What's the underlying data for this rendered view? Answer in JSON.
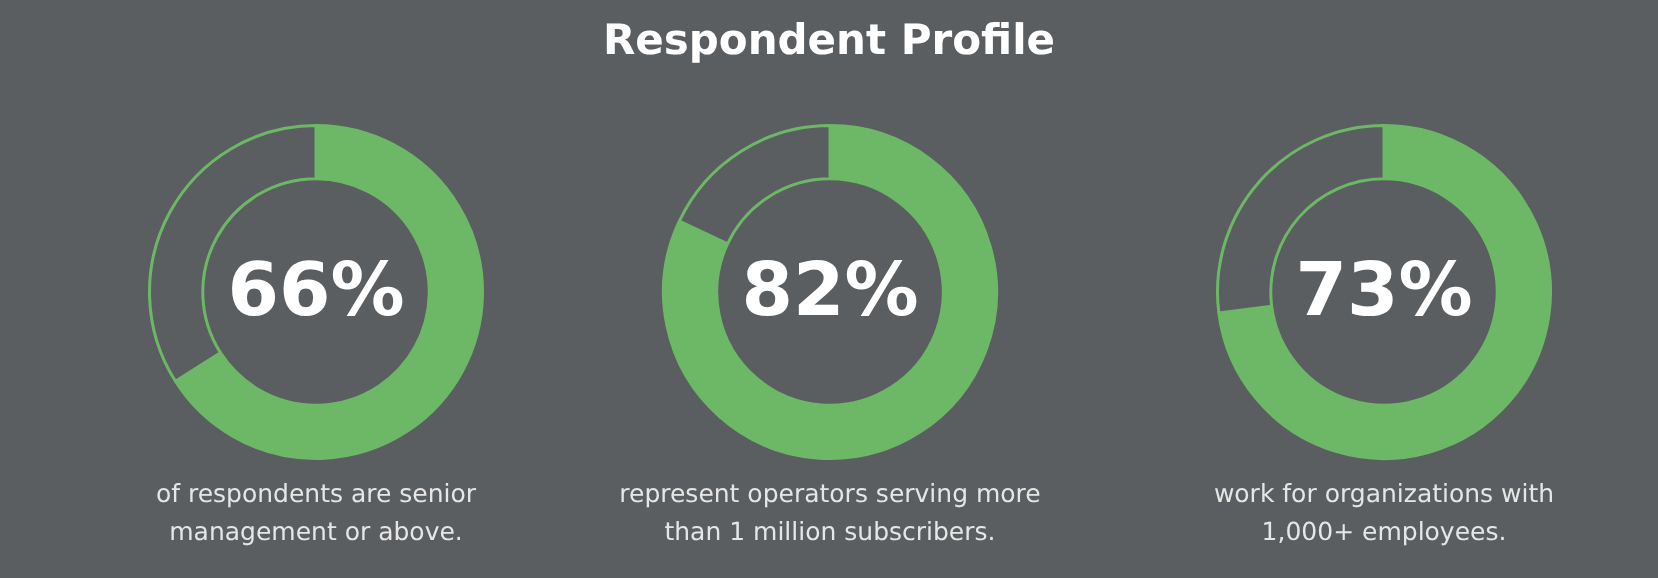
{
  "chart_data": [
    {
      "type": "other",
      "title": "Respondent Profile"
    },
    {
      "type": "donut",
      "categories": [
        null,
        null
      ],
      "values": [
        66,
        34
      ],
      "colors": [
        "#6cb866",
        "#5b5e60"
      ],
      "value_labels": [
        "66%",
        null
      ],
      "annotations": [
        "of respondents are senior management or above."
      ]
    },
    {
      "type": "donut",
      "categories": [
        null,
        null
      ],
      "values": [
        82,
        18
      ],
      "colors": [
        "#6cb866",
        "#5b5e60"
      ],
      "value_labels": [
        "82%",
        null
      ],
      "annotations": [
        "represent operators serving more than 1 million subscribers."
      ]
    },
    {
      "type": "donut",
      "categories": [
        null,
        null
      ],
      "values": [
        73,
        27
      ],
      "colors": [
        "#6cb866",
        "#5b5e60"
      ],
      "value_labels": [
        "73%",
        null
      ],
      "annotations": [
        "work for organizations with 1,000+ employees."
      ]
    }
  ]
}
